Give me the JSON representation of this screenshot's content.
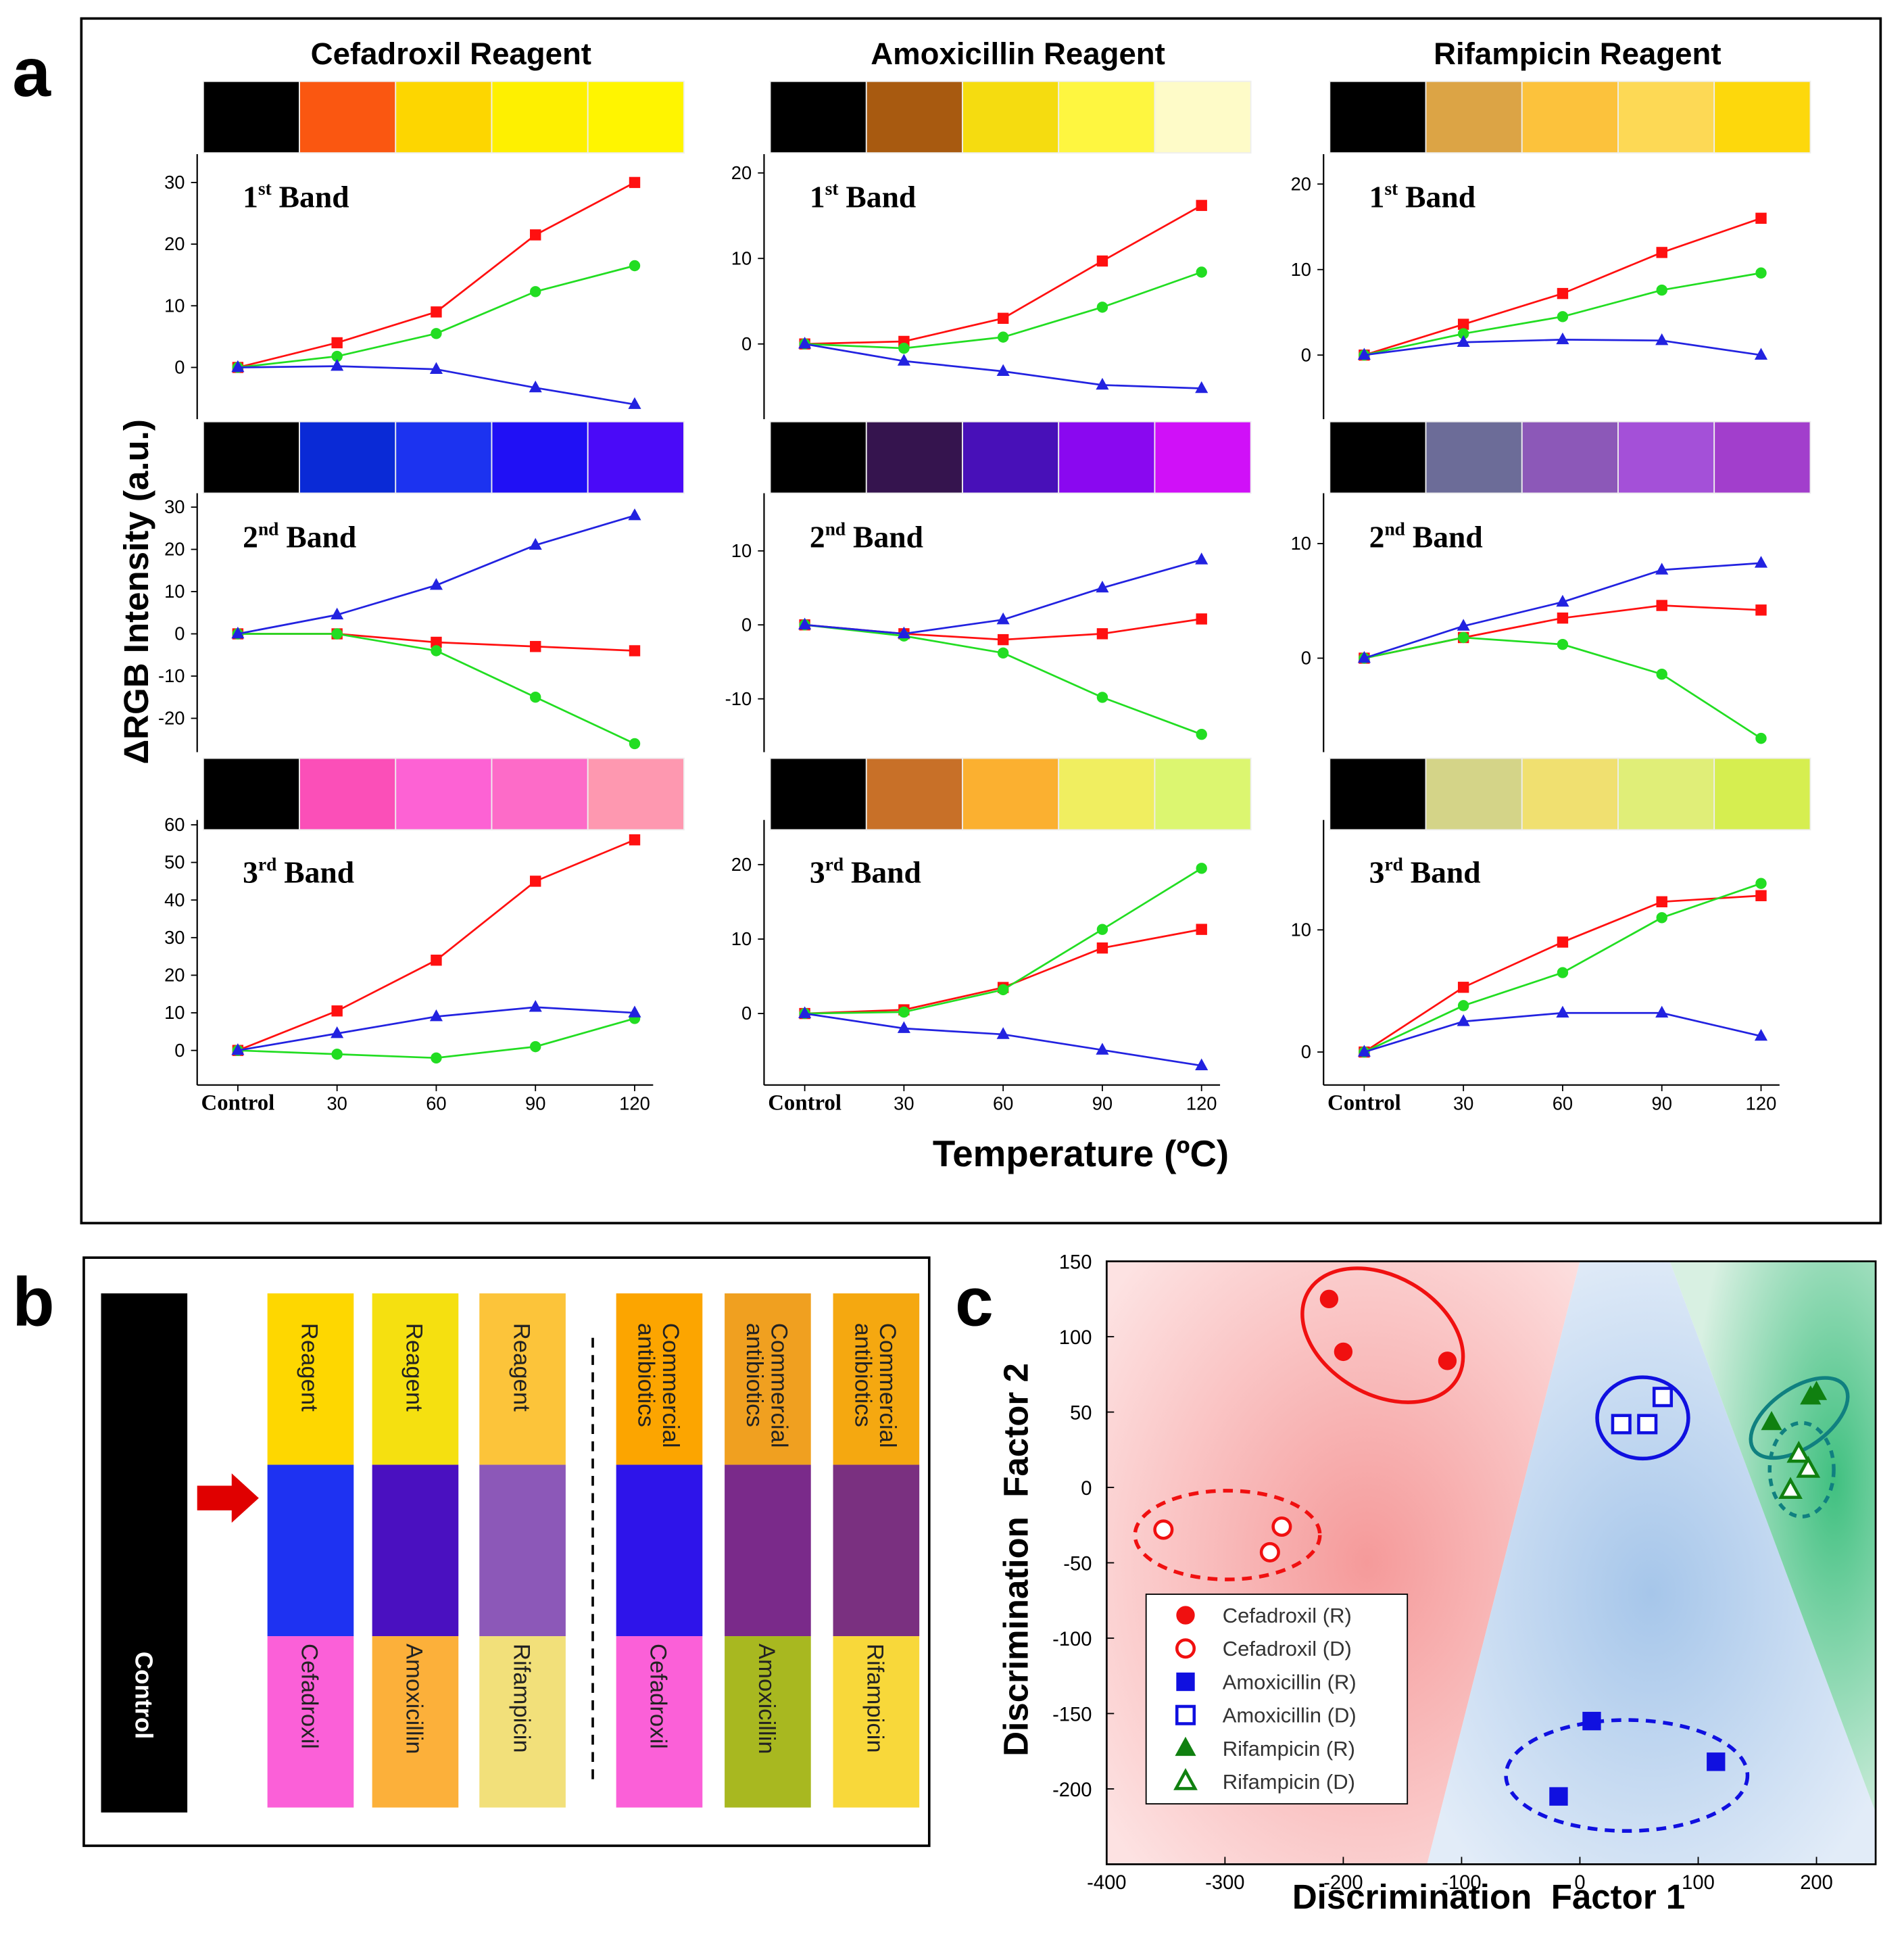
{
  "panel_labels": {
    "a": "a",
    "b": "b",
    "c": "c"
  },
  "figure_a": {
    "column_titles": [
      "Cefadroxil Reagent",
      "Amoxicillin Reagent",
      "Rifampicin Reagent"
    ],
    "y_label": "ΔRGB Intensity (a.u.)",
    "x_label": "Temperature (ºC)"
  },
  "chart_data": [
    {
      "type": "line",
      "band": {
        "number": "1",
        "suffix": "st",
        "word": "Band"
      },
      "swatches": [
        "#000000",
        "#fa5711",
        "#fdd600",
        "#fef000",
        "#fff500"
      ],
      "categories": [
        null,
        null,
        null,
        null,
        null
      ],
      "ylim": [
        -8.4,
        34.6
      ],
      "yticks": [
        0,
        10,
        20,
        30
      ],
      "series": [
        {
          "color": "#ff1010",
          "marker": "square",
          "values": [
            0,
            4,
            9,
            21.5,
            30
          ]
        },
        {
          "color": "#22dd22",
          "marker": "circle",
          "values": [
            0,
            1.8,
            5.5,
            12.3,
            16.5
          ]
        },
        {
          "color": "#2222e0",
          "marker": "triangle",
          "values": [
            0,
            0.2,
            -0.3,
            -3.3,
            -6
          ]
        }
      ]
    },
    {
      "type": "line",
      "band": {
        "number": "2",
        "suffix": "nd",
        "word": "Band"
      },
      "swatches": [
        "#000000",
        "#0a2ad6",
        "#1c33f0",
        "#2010f5",
        "#4a0af8"
      ],
      "categories": [
        null,
        null,
        null,
        null,
        null
      ],
      "ylim": [
        -28,
        33.3
      ],
      "yticks": [
        -20,
        -10,
        0,
        10,
        20,
        30
      ],
      "series": [
        {
          "color": "#ff1010",
          "marker": "square",
          "values": [
            0,
            0,
            -2,
            -3,
            -4
          ]
        },
        {
          "color": "#22dd22",
          "marker": "circle",
          "values": [
            0,
            0,
            -4,
            -15,
            -26
          ]
        },
        {
          "color": "#2222e0",
          "marker": "triangle",
          "values": [
            0,
            4.5,
            11.5,
            21,
            28
          ]
        }
      ]
    },
    {
      "type": "line",
      "band": {
        "number": "3",
        "suffix": "rd",
        "word": "Band"
      },
      "swatches": [
        "#000000",
        "#fb4fb8",
        "#fd62d4",
        "#fd6bc8",
        "#fe98b0"
      ],
      "categories": [
        "Control",
        "30",
        "60",
        "90",
        "120"
      ],
      "ylim": [
        -9.2,
        61.3
      ],
      "yticks": [
        0,
        10,
        20,
        30,
        40,
        50,
        60
      ],
      "series": [
        {
          "color": "#ff1010",
          "marker": "square",
          "values": [
            0,
            10.5,
            24,
            45,
            56
          ]
        },
        {
          "color": "#22dd22",
          "marker": "circle",
          "values": [
            0,
            -1,
            -2,
            1,
            8.5
          ]
        },
        {
          "color": "#2222e0",
          "marker": "triangle",
          "values": [
            0,
            4.5,
            9,
            11.5,
            10
          ]
        }
      ]
    },
    {
      "type": "line",
      "band": {
        "number": "1",
        "suffix": "st",
        "word": "Band"
      },
      "swatches": [
        "#000000",
        "#a85a10",
        "#f5dc10",
        "#fef640",
        "#fefbc8"
      ],
      "categories": [
        null,
        null,
        null,
        null,
        null
      ],
      "ylim": [
        -8.8,
        22.2
      ],
      "yticks": [
        0,
        10,
        20
      ],
      "series": [
        {
          "color": "#ff1010",
          "marker": "square",
          "values": [
            0,
            0.3,
            3,
            9.7,
            16.2
          ]
        },
        {
          "color": "#22dd22",
          "marker": "circle",
          "values": [
            0,
            -0.5,
            0.8,
            4.3,
            8.4
          ]
        },
        {
          "color": "#2222e0",
          "marker": "triangle",
          "values": [
            0,
            -2,
            -3.2,
            -4.8,
            -5.2
          ]
        }
      ]
    },
    {
      "type": "line",
      "band": {
        "number": "2",
        "suffix": "nd",
        "word": "Band"
      },
      "swatches": [
        "#000000",
        "#35144e",
        "#4810b8",
        "#8a08f0",
        "#d010f8"
      ],
      "categories": [
        null,
        null,
        null,
        null,
        null
      ],
      "ylim": [
        -17.2,
        17.8
      ],
      "yticks": [
        -10,
        0,
        10
      ],
      "series": [
        {
          "color": "#ff1010",
          "marker": "square",
          "values": [
            0,
            -1.2,
            -2,
            -1.2,
            0.8
          ]
        },
        {
          "color": "#22dd22",
          "marker": "circle",
          "values": [
            0,
            -1.5,
            -3.8,
            -9.8,
            -14.8
          ]
        },
        {
          "color": "#2222e0",
          "marker": "triangle",
          "values": [
            0,
            -1.2,
            0.7,
            5,
            8.8
          ]
        }
      ]
    },
    {
      "type": "line",
      "band": {
        "number": "3",
        "suffix": "rd",
        "word": "Band"
      },
      "swatches": [
        "#000000",
        "#c87028",
        "#fbb030",
        "#f0ee60",
        "#dcf670"
      ],
      "categories": [
        "Control",
        "30",
        "60",
        "90",
        "120"
      ],
      "ylim": [
        -9.6,
        26
      ],
      "yticks": [
        0,
        10,
        20
      ],
      "series": [
        {
          "color": "#ff1010",
          "marker": "square",
          "values": [
            0,
            0.5,
            3.5,
            8.8,
            11.3
          ]
        },
        {
          "color": "#22dd22",
          "marker": "circle",
          "values": [
            0,
            0.2,
            3.2,
            11.3,
            19.5
          ]
        },
        {
          "color": "#2222e0",
          "marker": "triangle",
          "values": [
            0,
            -2,
            -2.8,
            -4.9,
            -7
          ]
        }
      ]
    },
    {
      "type": "line",
      "band": {
        "number": "1",
        "suffix": "st",
        "word": "Band"
      },
      "swatches": [
        "#000000",
        "#dca445",
        "#fcc23c",
        "#fdd955",
        "#fdd80c"
      ],
      "categories": [
        null,
        null,
        null,
        null,
        null
      ],
      "ylim": [
        -7.5,
        23.5
      ],
      "yticks": [
        0,
        10,
        20
      ],
      "series": [
        {
          "color": "#ff1010",
          "marker": "square",
          "values": [
            0,
            3.6,
            7.2,
            12,
            16
          ]
        },
        {
          "color": "#22dd22",
          "marker": "circle",
          "values": [
            0,
            2.5,
            4.5,
            7.6,
            9.6
          ]
        },
        {
          "color": "#2222e0",
          "marker": "triangle",
          "values": [
            0,
            1.5,
            1.8,
            1.7,
            0
          ]
        }
      ]
    },
    {
      "type": "line",
      "band": {
        "number": "2",
        "suffix": "nd",
        "word": "Band"
      },
      "swatches": [
        "#000000",
        "#6c6c98",
        "#8c58b8",
        "#a450d8",
        "#a23ecc"
      ],
      "categories": [
        null,
        null,
        null,
        null,
        null
      ],
      "ylim": [
        -8.2,
        14.4
      ],
      "yticks": [
        0,
        10
      ],
      "series": [
        {
          "color": "#ff1010",
          "marker": "square",
          "values": [
            0,
            1.8,
            3.5,
            4.6,
            4.2
          ]
        },
        {
          "color": "#22dd22",
          "marker": "circle",
          "values": [
            0,
            1.8,
            1.2,
            -1.4,
            -7
          ]
        },
        {
          "color": "#2222e0",
          "marker": "triangle",
          "values": [
            0,
            2.8,
            4.9,
            7.7,
            8.3
          ]
        }
      ]
    },
    {
      "type": "line",
      "band": {
        "number": "3",
        "suffix": "rd",
        "word": "Band"
      },
      "swatches": [
        "#000000",
        "#d4d488",
        "#f0e070",
        "#e0ee78",
        "#d6ee50"
      ],
      "categories": [
        "Control",
        "30",
        "60",
        "90",
        "120"
      ],
      "ylim": [
        -2.7,
        19
      ],
      "yticks": [
        0,
        10
      ],
      "series": [
        {
          "color": "#ff1010",
          "marker": "square",
          "values": [
            0,
            5.3,
            9,
            12.3,
            12.8
          ]
        },
        {
          "color": "#22dd22",
          "marker": "circle",
          "values": [
            0,
            3.8,
            6.5,
            11,
            13.8
          ]
        },
        {
          "color": "#2222e0",
          "marker": "triangle",
          "values": [
            0,
            2.5,
            3.2,
            3.2,
            1.3
          ]
        }
      ]
    },
    {
      "type": "scatter",
      "x_label": "Discrimination  Factor 1",
      "y_label": "Discrimination  Factor 2",
      "xlim": [
        -400,
        250
      ],
      "ylim": [
        -250,
        150
      ],
      "xticks": [
        -400,
        -300,
        -200,
        -100,
        0,
        100,
        200
      ],
      "yticks": [
        -200,
        -150,
        -100,
        -50,
        0,
        50,
        100,
        150
      ],
      "series": [
        {
          "name": "Cefadroxil (R)",
          "color": "#f01010",
          "marker": "circle",
          "filled": true,
          "x": [
            -212,
            -200,
            -112
          ],
          "values": [
            125,
            90,
            84
          ]
        },
        {
          "name": "Cefadroxil (D)",
          "color": "#f01010",
          "marker": "circle",
          "filled": false,
          "x": [
            -352,
            -262,
            -252
          ],
          "values": [
            -28,
            -43,
            -26
          ]
        },
        {
          "name": "Amoxicillin (R)",
          "color": "#1010e0",
          "marker": "square",
          "filled": true,
          "x": [
            -18,
            10,
            115
          ],
          "values": [
            -205,
            -155,
            -182
          ]
        },
        {
          "name": "Amoxicillin (D)",
          "color": "#1010e0",
          "marker": "square",
          "filled": false,
          "x": [
            35,
            57,
            70
          ],
          "values": [
            42,
            42,
            60
          ]
        },
        {
          "name": "Rifampicin (R)",
          "color": "#108010",
          "marker": "triangle",
          "filled": true,
          "x": [
            162,
            195,
            200
          ],
          "values": [
            43,
            60,
            63
          ]
        },
        {
          "name": "Rifampicin (D)",
          "color": "#108010",
          "marker": "triangle",
          "filled": false,
          "x": [
            178,
            185,
            193
          ],
          "values": [
            -2,
            22,
            12
          ]
        }
      ]
    }
  ],
  "figure_b": {
    "control": "Control",
    "columns": [
      {
        "top": [
          "Reagent"
        ],
        "bottom": "Cefadroxil",
        "colors": [
          "#fed700",
          "#1e32f2",
          "#fb60d8"
        ]
      },
      {
        "top": [
          "Reagent"
        ],
        "bottom": "Amoxicillin",
        "colors": [
          "#f5e010",
          "#4a10c0",
          "#fcb03a"
        ]
      },
      {
        "top": [
          "Reagent"
        ],
        "bottom": "Rifampicin",
        "colors": [
          "#fcc43a",
          "#8c58b8",
          "#f2e07a"
        ]
      },
      {
        "top": [
          "Commercial",
          "antibiotics"
        ],
        "bottom": "Cefadroxil",
        "colors": [
          "#fca500",
          "#2e14ea",
          "#fb60d8"
        ]
      },
      {
        "top": [
          "Commercial",
          "antibiotics"
        ],
        "bottom": "Amoxicillin",
        "colors": [
          "#f0a020",
          "#7a2a8a",
          "#a8b820"
        ]
      },
      {
        "top": [
          "Commercial",
          "antibiotics"
        ],
        "bottom": "Rifampicin",
        "colors": [
          "#f5a810",
          "#7a3080",
          "#f8d83a"
        ]
      }
    ]
  }
}
